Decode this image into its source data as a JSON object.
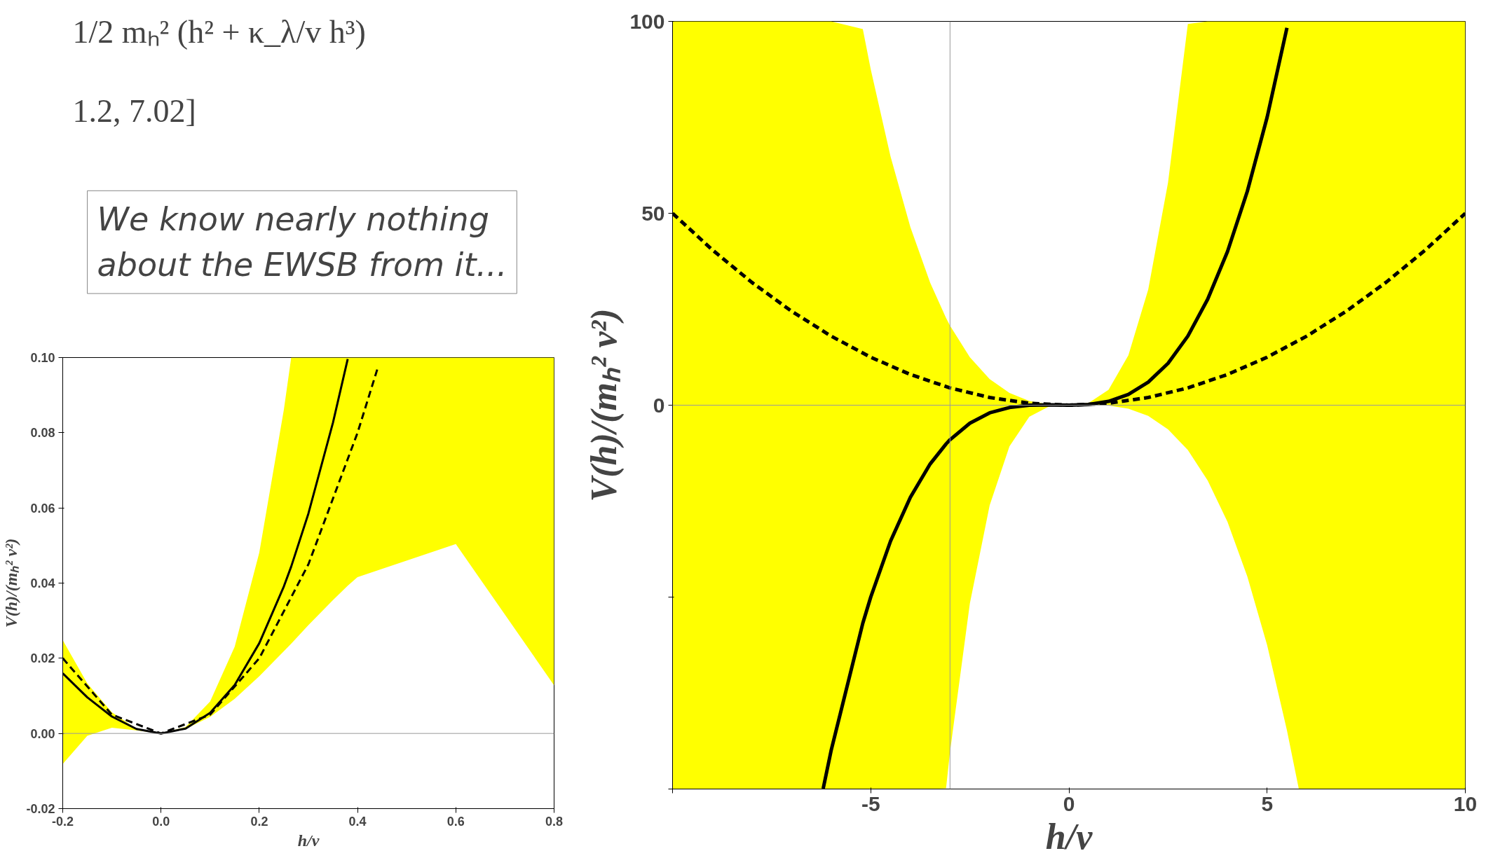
{
  "chart_data": [
    {
      "type": "line",
      "xlabel": "h/v",
      "ylabel": "V(h)/(mₕ² v²)",
      "xlim": [
        -10,
        10
      ],
      "xticks": [
        {
          "value": -10,
          "label": null
        },
        -5,
        0,
        5,
        10
      ],
      "ylim": [
        -100,
        100
      ],
      "yticks": [
        {
          "value": -100,
          "label": null
        },
        {
          "value": -50,
          "label": null
        },
        0,
        50,
        100
      ],
      "annotations": [
        "1/2 mₕ² (h² + κ_λ/v h³)",
        "1.2, 7.02]",
        "We know nearly nothing\nabout the EWSB from it..."
      ],
      "ref_lines": [
        {
          "axis": "x",
          "value": -3,
          "label": null,
          "color": "#999999"
        },
        {
          "axis": "y",
          "value": 0,
          "label": null,
          "color": "#999999"
        }
      ],
      "series": [
        {
          "color": "#000000",
          "line_style": "solid",
          "x": [
            -10,
            -6.2,
            -6,
            -5.2,
            -5,
            -4.5,
            -4,
            -3.5,
            -3.1,
            -3,
            -2.5,
            -2,
            -1.5,
            -1,
            -0.5,
            0,
            0.5,
            1,
            1.5,
            2,
            2.5,
            3,
            3.5,
            4,
            4.5,
            5,
            5.5,
            5.8,
            10
          ],
          "values": [
            null,
            -99.9,
            -90,
            -56.8,
            -50,
            -35.4,
            -24,
            -15.3,
            -10.1,
            -9,
            -4.7,
            -2,
            -0.6,
            0,
            0.1,
            0,
            0.2,
            1,
            2.8,
            6,
            10.9,
            18,
            27.6,
            40,
            55.7,
            75,
            98.3,
            null,
            null
          ],
          "upper": [
            100,
            100,
            100,
            98,
            87.5,
            64.8,
            46.4,
            31.9,
            22.7,
            20.7,
            12.5,
            6.8,
            3.2,
            1.1,
            0.2,
            0,
            0.6,
            4,
            13,
            30.1,
            58,
            99.3,
            100,
            100,
            100,
            100,
            100,
            100,
            100
          ],
          "lower": [
            -100,
            -100,
            -100,
            -100,
            -100,
            -100,
            -100,
            -100,
            -99.8,
            -90.3,
            -51.7,
            -26.1,
            -10.7,
            -3,
            -0.3,
            0,
            0.05,
            -0.1,
            -0.9,
            -2.8,
            -6.3,
            -11.7,
            -19.6,
            -30.4,
            -44.6,
            -62.5,
            -84.7,
            -100,
            -100
          ]
        },
        {
          "color": "#000000",
          "line_style": "dashed",
          "x": [
            -10,
            -9,
            -8,
            -7,
            -6,
            -5,
            -4,
            -3,
            -2,
            -1,
            0,
            1,
            2,
            3,
            4,
            5,
            6,
            7,
            8,
            9,
            10
          ],
          "values": [
            50,
            40.5,
            32,
            24.5,
            18,
            12.5,
            8,
            4.5,
            2,
            0.5,
            0,
            0.5,
            2,
            4.5,
            8,
            12.5,
            18,
            24.5,
            32,
            40.5,
            50
          ]
        }
      ]
    },
    {
      "type": "line",
      "xlabel": "h/v",
      "ylabel": "V(h)/(mₕ² v²)",
      "xlim": [
        -0.2,
        0.8
      ],
      "xticks": [
        {
          "value": -0.2,
          "label": "-0.2"
        },
        {
          "value": 0,
          "label": "0.0"
        },
        0.2,
        0.4,
        0.6,
        0.8
      ],
      "ylim": [
        -0.02,
        0.1
      ],
      "yticks": [
        {
          "value": -0.02,
          "label": "-0.02"
        },
        {
          "value": 0,
          "label": "0.00"
        },
        0.02,
        0.04,
        0.06,
        0.08,
        {
          "value": 0.1,
          "label": "0.10"
        }
      ],
      "ref_lines": [
        {
          "axis": "y",
          "value": 0,
          "label": null,
          "color": "#999999"
        }
      ],
      "series": [
        {
          "color": "#000000",
          "line_style": "solid",
          "x": [
            -0.2,
            -0.15,
            -0.1,
            -0.05,
            0,
            0.05,
            0.1,
            0.15,
            0.2,
            0.25,
            0.265,
            0.3,
            0.35,
            0.38,
            0.4,
            0.6,
            0.8
          ],
          "values": [
            0.016,
            0.0096,
            0.0045,
            0.0012,
            0,
            0.0013,
            0.0055,
            0.0129,
            0.024,
            0.0391,
            0.0444,
            0.0585,
            0.0827,
            0.0996,
            null,
            null,
            null
          ],
          "upper": [
            0.0248,
            0.0133,
            0.0056,
            0.0013,
            0,
            0.0017,
            0.0085,
            0.0231,
            0.0481,
            0.0861,
            0.1,
            0.1,
            0.1,
            0.1,
            0.1,
            0.1,
            0.1
          ],
          "lower": [
            -0.0081,
            -0.0006,
            0.0015,
            0.0008,
            0,
            0.0012,
            0.0044,
            0.0092,
            0.0152,
            0.0219,
            0.0239,
            0.0288,
            0.0355,
            0.0393,
            0.0416,
            0.0504,
            0.0128
          ]
        },
        {
          "color": "#000000",
          "line_style": "dashed",
          "x": [
            -0.2,
            -0.1,
            0,
            0.1,
            0.2,
            0.3,
            0.4,
            0.44
          ],
          "values": [
            0.02,
            0.005,
            0,
            0.005,
            0.02,
            0.045,
            0.08,
            0.0968
          ]
        }
      ]
    }
  ]
}
